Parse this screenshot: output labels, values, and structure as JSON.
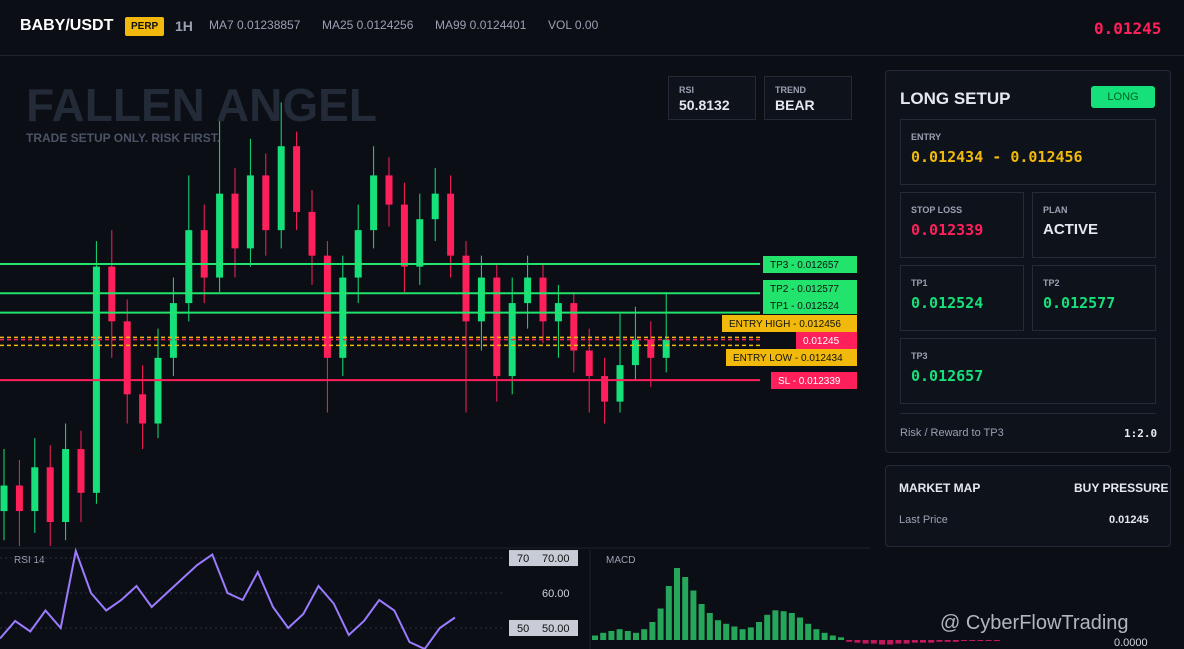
{
  "header": {
    "symbol": "BABY/USDT",
    "badge": "PERP",
    "interval": "1H",
    "ma7": "MA7 0.01238857",
    "ma25": "MA25 0.0124256",
    "ma99": "MA99 0.0124401",
    "vol": "VOL 0.00",
    "last": "0.01245"
  },
  "watermark_title": "FALLEN ANGEL",
  "tagline": "TRADE SETUP ONLY. RISK FIRST.",
  "stats": [
    {
      "label": "RSI",
      "value": "50.8132"
    },
    {
      "label": "TREND",
      "value": "BEAR"
    }
  ],
  "chart": {
    "type": "candlestick",
    "ylim": [
      0.011887,
      0.01323
    ],
    "up_color": "#16e07a",
    "down_color": "#ff1f5a",
    "candles": [
      [
        0.01198,
        0.01215,
        0.0119,
        0.01205
      ],
      [
        0.01205,
        0.01212,
        0.01185,
        0.01198
      ],
      [
        0.01198,
        0.01218,
        0.01192,
        0.0121
      ],
      [
        0.0121,
        0.01216,
        0.01188,
        0.01195
      ],
      [
        0.01195,
        0.01222,
        0.0119,
        0.01215
      ],
      [
        0.01215,
        0.0122,
        0.01195,
        0.01203
      ],
      [
        0.01203,
        0.01272,
        0.012,
        0.01265
      ],
      [
        0.01265,
        0.01275,
        0.0124,
        0.0125
      ],
      [
        0.0125,
        0.01256,
        0.01222,
        0.0123
      ],
      [
        0.0123,
        0.01238,
        0.01215,
        0.01222
      ],
      [
        0.01222,
        0.01248,
        0.01218,
        0.0124
      ],
      [
        0.0124,
        0.01262,
        0.01235,
        0.01255
      ],
      [
        0.01255,
        0.0129,
        0.0125,
        0.01275
      ],
      [
        0.01275,
        0.01282,
        0.01255,
        0.01262
      ],
      [
        0.01262,
        0.01305,
        0.01258,
        0.01285
      ],
      [
        0.01285,
        0.01292,
        0.01262,
        0.0127
      ],
      [
        0.0127,
        0.013,
        0.01265,
        0.0129
      ],
      [
        0.0129,
        0.01296,
        0.01268,
        0.01275
      ],
      [
        0.01275,
        0.0131,
        0.0127,
        0.01298
      ],
      [
        0.01298,
        0.01302,
        0.01275,
        0.0128
      ],
      [
        0.0128,
        0.01286,
        0.0126,
        0.01268
      ],
      [
        0.01268,
        0.01272,
        0.01225,
        0.0124
      ],
      [
        0.0124,
        0.01268,
        0.01235,
        0.01262
      ],
      [
        0.01262,
        0.01282,
        0.01255,
        0.01275
      ],
      [
        0.01275,
        0.01298,
        0.0127,
        0.0129
      ],
      [
        0.0129,
        0.01295,
        0.01276,
        0.01282
      ],
      [
        0.01282,
        0.01288,
        0.01258,
        0.01265
      ],
      [
        0.01265,
        0.01285,
        0.0126,
        0.01278
      ],
      [
        0.01278,
        0.01292,
        0.01272,
        0.01285
      ],
      [
        0.01285,
        0.0129,
        0.01262,
        0.01268
      ],
      [
        0.01268,
        0.01272,
        0.01225,
        0.0125
      ],
      [
        0.0125,
        0.01268,
        0.01242,
        0.01262
      ],
      [
        0.01262,
        0.01266,
        0.01228,
        0.01235
      ],
      [
        0.01235,
        0.01262,
        0.0123,
        0.01255
      ],
      [
        0.01255,
        0.01268,
        0.01248,
        0.01262
      ],
      [
        0.01262,
        0.01266,
        0.01244,
        0.0125
      ],
      [
        0.0125,
        0.0126,
        0.0124,
        0.01255
      ],
      [
        0.01255,
        0.01258,
        0.01236,
        0.01242
      ],
      [
        0.01242,
        0.01248,
        0.01225,
        0.01235
      ],
      [
        0.01235,
        0.0124,
        0.01222,
        0.01228
      ],
      [
        0.01228,
        0.01252,
        0.01225,
        0.01238
      ],
      [
        0.01238,
        0.01254,
        0.01234,
        0.01245
      ],
      [
        0.01245,
        0.0125,
        0.01232,
        0.0124
      ],
      [
        0.0124,
        0.01258,
        0.01236,
        0.01245
      ]
    ],
    "levels": [
      {
        "label": "TP3 - 0.012657",
        "value": 0.012657,
        "color": "#22e36b",
        "style": "solid"
      },
      {
        "label": "TP2 - 0.012577",
        "value": 0.012577,
        "color": "#22e36b",
        "style": "solid"
      },
      {
        "label": "TP1 - 0.012524",
        "value": 0.012524,
        "color": "#22e36b",
        "style": "solid"
      },
      {
        "label": "ENTRY HIGH - 0.012456",
        "value": 0.012456,
        "color": "#f0b90b",
        "style": "dashed"
      },
      {
        "label": "0.01245",
        "value": 0.01245,
        "color": "#ff1f5a",
        "style": "dashed"
      },
      {
        "label": "ENTRY LOW - 0.012434",
        "value": 0.012434,
        "color": "#f0b90b",
        "style": "dashed"
      },
      {
        "label": "SL - 0.012339",
        "value": 0.012339,
        "color": "#ff1f5a",
        "style": "solid"
      }
    ]
  },
  "rsi": {
    "title": "RSI 14",
    "ylim": [
      44,
      72.3
    ],
    "color": "#9b7bff",
    "values": [
      47,
      52,
      49,
      55,
      50,
      72,
      60,
      55,
      58,
      62,
      56,
      60,
      64,
      68,
      71,
      60,
      58,
      66,
      56,
      50,
      54,
      62,
      57,
      48,
      52,
      58,
      55,
      46,
      44,
      50,
      53
    ],
    "ticks": [
      {
        "value": 70,
        "tag": "70",
        "label": "70.00"
      },
      {
        "value": 60,
        "label": "60.00"
      },
      {
        "value": 50,
        "tag": "50",
        "label": "50.00"
      }
    ]
  },
  "macd": {
    "title": "MACD",
    "zero_label": "0.0000",
    "ylim": [
      -1e-05,
      0.0001
    ],
    "up_color": "#26a65b",
    "down_color": "#c2185b",
    "histogram": [
      5e-06,
      8e-06,
      1e-05,
      1.2e-05,
      1e-05,
      8e-06,
      1.2e-05,
      2e-05,
      3.5e-05,
      6e-05,
      8e-05,
      7e-05,
      5.5e-05,
      4e-05,
      3e-05,
      2.2e-05,
      1.8e-05,
      1.5e-05,
      1.2e-05,
      1.4e-05,
      2e-05,
      2.8e-05,
      3.3e-05,
      3.2e-05,
      3e-05,
      2.5e-05,
      1.8e-05,
      1.2e-05,
      8e-06,
      5e-06,
      3e-06,
      -2e-06,
      -3e-06,
      -4e-06,
      -4e-06,
      -5e-06,
      -5e-06,
      -4e-06,
      -4e-06,
      -3e-06,
      -3e-06,
      -3e-06,
      -2e-06,
      -2e-06,
      -2e-06,
      -1e-06,
      -1e-06,
      -1e-06,
      -1e-06,
      -1e-06
    ]
  },
  "setup": {
    "title": "LONG SETUP",
    "badge": "LONG",
    "entry": {
      "label": "ENTRY",
      "value": "0.012434 - 0.012456"
    },
    "stop_loss": {
      "label": "STOP LOSS",
      "value": "0.012339"
    },
    "plan": {
      "label": "PLAN",
      "value": "ACTIVE"
    },
    "tp1": {
      "label": "TP1",
      "value": "0.012524"
    },
    "tp2": {
      "label": "TP2",
      "value": "0.012577"
    },
    "tp3": {
      "label": "TP3",
      "value": "0.012657"
    },
    "rr": {
      "label": "Risk / Reward to TP3",
      "value": "1:2.0"
    }
  },
  "market_map": {
    "title": "MARKET MAP",
    "status": "BUY PRESSURE",
    "row_label": "Last Price",
    "row_value": "0.01245"
  },
  "credit": "@ CyberFlowTrading"
}
